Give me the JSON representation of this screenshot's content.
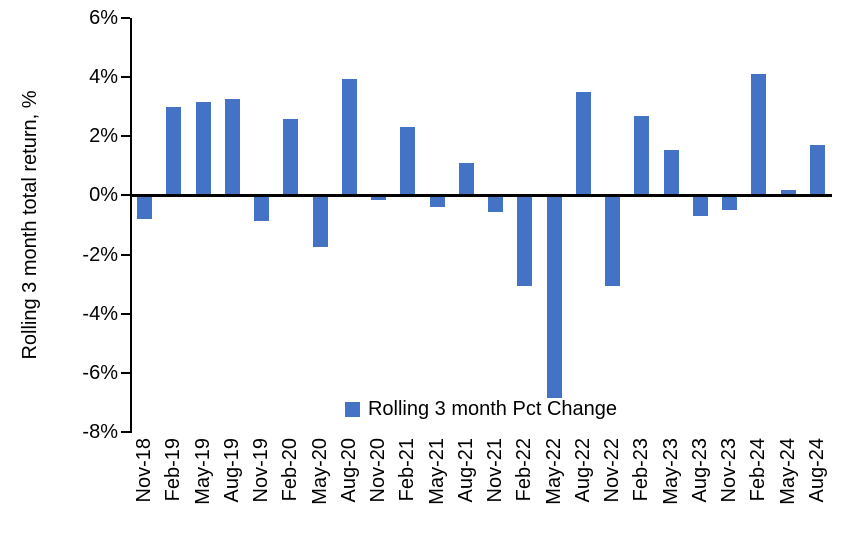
{
  "chart_data": {
    "type": "bar",
    "title": "",
    "xlabel": "",
    "ylabel": "Rolling 3 month total return, %",
    "ylim": [
      -8,
      6
    ],
    "yticks": [
      6,
      4,
      2,
      0,
      -2,
      -4,
      -6,
      -8
    ],
    "ytick_suffix": "%",
    "grid": false,
    "bar_color": "#4472C4",
    "axis_color": "#000000",
    "background_color": "#FFFFFF",
    "legend": {
      "position": "bottom-center-inside",
      "entries": [
        "Rolling 3 month Pct Change"
      ]
    },
    "categories": [
      "Nov-18",
      "Feb-19",
      "May-19",
      "Aug-19",
      "Nov-19",
      "Feb-20",
      "May-20",
      "Aug-20",
      "Nov-20",
      "Feb-21",
      "May-21",
      "Aug-21",
      "Nov-21",
      "Feb-22",
      "May-22",
      "Aug-22",
      "Nov-22",
      "Feb-23",
      "May-23",
      "Aug-23",
      "Nov-23",
      "Feb-24",
      "May-24",
      "Aug-24"
    ],
    "values": [
      -0.8,
      3.0,
      3.15,
      3.25,
      -0.85,
      2.6,
      -1.75,
      3.95,
      -0.15,
      2.3,
      -0.4,
      1.1,
      -0.55,
      -3.05,
      -6.85,
      3.5,
      -3.05,
      2.7,
      1.55,
      -0.7,
      -0.5,
      4.1,
      0.2,
      1.7
    ]
  }
}
